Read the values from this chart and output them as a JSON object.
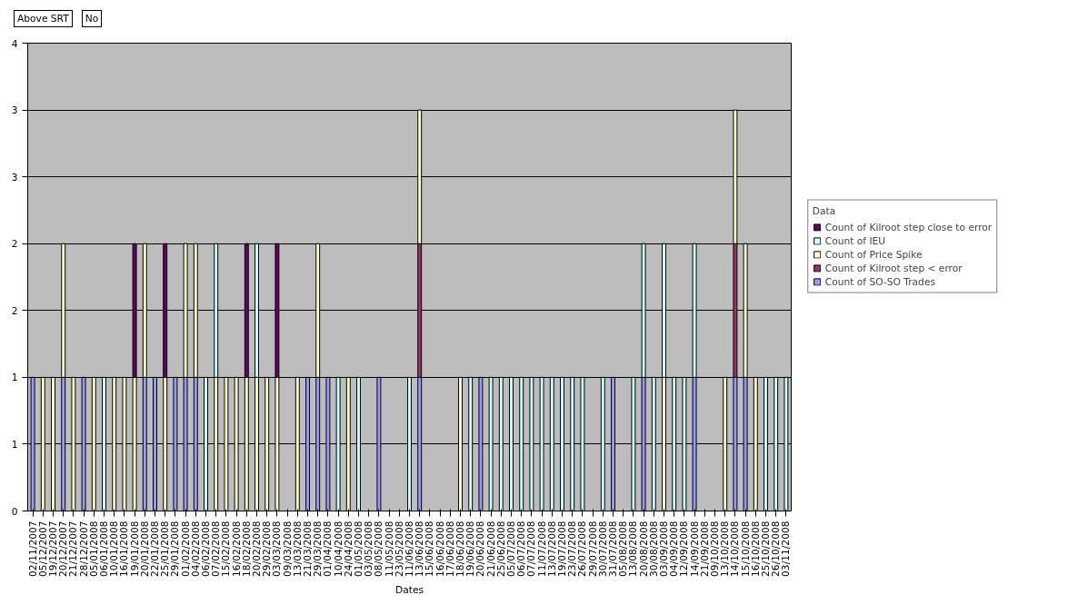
{
  "chart_data": {
    "type": "bar",
    "stacked": true,
    "xlabel": "Dates",
    "legend_title": "Data",
    "legend": "right",
    "grid": "y",
    "annotations": [
      "Above SRT",
      "No"
    ],
    "ylim": [
      0,
      3.5
    ],
    "yticks": [
      0,
      {
        "value": 0.5,
        "label": "1"
      },
      1,
      {
        "value": 1.5,
        "label": "2"
      },
      2,
      {
        "value": 2.5,
        "label": "3"
      },
      3,
      {
        "value": 3.5,
        "label": "4"
      }
    ],
    "categories": [
      "02/11/2007",
      "05/12/2007",
      "19/12/2007",
      "20/12/2007",
      "21/12/2007",
      "28/12/2007",
      "05/01/2008",
      "06/01/2008",
      "10/01/2008",
      "16/01/2008",
      "19/01/2008",
      "20/01/2008",
      "22/01/2008",
      "25/01/2008",
      "29/01/2008",
      "01/02/2008",
      "04/02/2008",
      "06/02/2008",
      "07/02/2008",
      "15/02/2008",
      "16/02/2008",
      "18/02/2008",
      "20/02/2008",
      "29/02/2008",
      "03/03/2008",
      "09/03/2008",
      "13/03/2008",
      "21/03/2008",
      "29/03/2008",
      "01/04/2008",
      "10/04/2008",
      "24/04/2008",
      "01/05/2008",
      "03/05/2008",
      "08/05/2008",
      "11/05/2008",
      "23/05/2008",
      "11/06/2008",
      "13/06/2008",
      "15/06/2008",
      "16/06/2008",
      "17/06/2008",
      "18/06/2008",
      "19/06/2008",
      "20/06/2008",
      "21/06/2008",
      "25/06/2008",
      "05/07/2008",
      "06/07/2008",
      "07/07/2008",
      "11/07/2008",
      "13/07/2008",
      "19/07/2008",
      "23/07/2008",
      "26/07/2008",
      "29/07/2008",
      "30/07/2008",
      "31/07/2008",
      "05/08/2008",
      "13/08/2008",
      "20/08/2008",
      "30/08/2008",
      "03/09/2008",
      "04/09/2008",
      "12/09/2008",
      "14/09/2008",
      "21/09/2008",
      "09/10/2008",
      "13/10/2008",
      "14/10/2008",
      "15/10/2008",
      "16/10/2008",
      "25/10/2008",
      "26/10/2008",
      "03/11/2008"
    ],
    "series": [
      {
        "name": "Count of SO-SO Trades",
        "color": "#9999ff",
        "values": [
          1,
          null,
          null,
          1,
          null,
          1,
          null,
          null,
          null,
          null,
          null,
          1,
          1,
          null,
          1,
          1,
          1,
          null,
          null,
          null,
          null,
          null,
          null,
          null,
          null,
          null,
          null,
          1,
          1,
          1,
          null,
          null,
          null,
          null,
          1,
          null,
          null,
          null,
          1,
          null,
          null,
          null,
          null,
          null,
          1,
          null,
          null,
          null,
          null,
          null,
          null,
          null,
          null,
          null,
          null,
          null,
          null,
          1,
          null,
          null,
          1,
          null,
          null,
          null,
          null,
          1,
          null,
          null,
          null,
          1,
          1,
          null,
          null,
          null,
          null
        ]
      },
      {
        "name": "Count of Kilroot step < error",
        "color": "#993366",
        "values": [
          null,
          null,
          null,
          null,
          null,
          null,
          null,
          null,
          null,
          null,
          null,
          null,
          null,
          null,
          null,
          null,
          null,
          null,
          null,
          null,
          null,
          null,
          null,
          null,
          null,
          null,
          null,
          null,
          null,
          null,
          null,
          null,
          null,
          null,
          null,
          null,
          null,
          null,
          1,
          null,
          null,
          null,
          null,
          null,
          null,
          null,
          null,
          null,
          null,
          null,
          null,
          null,
          null,
          null,
          null,
          null,
          null,
          null,
          null,
          null,
          null,
          null,
          null,
          null,
          null,
          null,
          null,
          null,
          null,
          1,
          null,
          null,
          null,
          null,
          null
        ]
      },
      {
        "name": "Count of Price Spike",
        "color": "#ffffcc",
        "values": [
          null,
          1,
          1,
          1,
          1,
          null,
          1,
          null,
          1,
          1,
          1,
          1,
          null,
          1,
          null,
          1,
          1,
          null,
          1,
          1,
          1,
          1,
          1,
          1,
          1,
          null,
          1,
          null,
          1,
          null,
          null,
          1,
          null,
          null,
          null,
          null,
          null,
          null,
          1,
          null,
          null,
          null,
          1,
          null,
          null,
          null,
          null,
          null,
          null,
          null,
          null,
          null,
          null,
          null,
          null,
          null,
          null,
          null,
          null,
          null,
          null,
          null,
          1,
          null,
          null,
          null,
          null,
          null,
          1,
          1,
          1,
          1,
          null,
          null,
          null
        ]
      },
      {
        "name": "Count of IEU",
        "color": "#ccffff",
        "values": [
          null,
          null,
          null,
          null,
          null,
          null,
          null,
          1,
          null,
          null,
          null,
          null,
          null,
          null,
          null,
          null,
          null,
          1,
          1,
          null,
          null,
          null,
          1,
          null,
          null,
          null,
          null,
          null,
          null,
          null,
          1,
          null,
          1,
          null,
          null,
          null,
          null,
          1,
          null,
          null,
          null,
          null,
          null,
          1,
          null,
          1,
          1,
          1,
          1,
          1,
          1,
          1,
          1,
          1,
          1,
          null,
          1,
          null,
          null,
          1,
          1,
          1,
          1,
          1,
          1,
          1,
          null,
          null,
          null,
          null,
          null,
          null,
          1,
          1,
          1
        ]
      },
      {
        "name": "Count of Kilroot step close to error",
        "color": "#660066",
        "values": [
          null,
          null,
          null,
          null,
          null,
          null,
          null,
          null,
          null,
          null,
          1,
          null,
          null,
          1,
          null,
          null,
          null,
          null,
          null,
          null,
          null,
          1,
          null,
          null,
          1,
          null,
          null,
          null,
          null,
          null,
          null,
          null,
          null,
          null,
          null,
          null,
          null,
          null,
          null,
          null,
          null,
          null,
          null,
          null,
          null,
          null,
          null,
          null,
          null,
          null,
          null,
          null,
          null,
          null,
          null,
          null,
          null,
          null,
          null,
          null,
          null,
          null,
          null,
          null,
          null,
          null,
          null,
          null,
          null,
          null,
          null,
          null,
          null,
          null,
          null
        ]
      }
    ]
  }
}
